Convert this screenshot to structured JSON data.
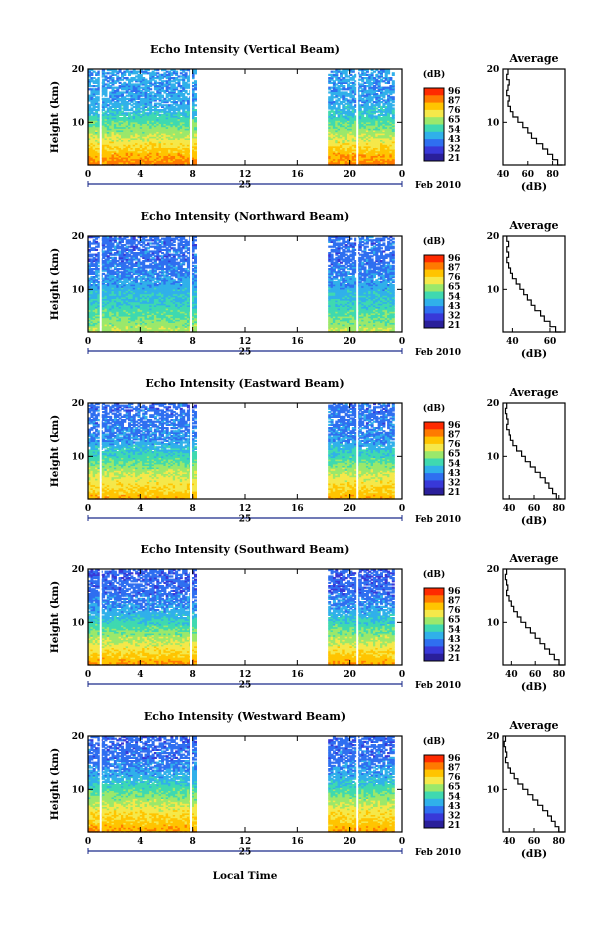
{
  "chart_data": {
    "type": "heatmap",
    "xlabel": "Local Time",
    "date_label": "Feb 2010",
    "day_label": "25",
    "x_ticks": [
      "0",
      "4",
      "8",
      "12",
      "16",
      "20",
      "0"
    ],
    "x_range_hours": [
      0,
      24
    ],
    "data_gaps_hours": [
      [
        8.3,
        18.2
      ]
    ],
    "y_ticks": [
      "20",
      "10"
    ],
    "y_range_km": [
      2,
      20
    ],
    "ylabel": "Height (km)",
    "colorbar": {
      "unit": "(dB)",
      "ticks": [
        "96",
        "87",
        "76",
        "65",
        "54",
        "43",
        "32",
        "21"
      ],
      "range_db": [
        21,
        96
      ],
      "colors": [
        "#ff2a00",
        "#ff7a00",
        "#ffc400",
        "#f5e84a",
        "#9be86b",
        "#3fd9b0",
        "#30b0ea",
        "#2f6ff0",
        "#3838d8",
        "#2a1f9a"
      ]
    },
    "average_title": "Average",
    "average_xlabel": "(dB)",
    "panels": [
      {
        "title": "Echo Intensity (Vertical Beam)",
        "average_x_ticks": [
          "40",
          "60",
          "80"
        ],
        "average_xlim": [
          40,
          90
        ],
        "average_profile": {
          "height_km": [
            20,
            19,
            18,
            17,
            16,
            15,
            14,
            13,
            12,
            11,
            10,
            9,
            8,
            7,
            6,
            5,
            4,
            3,
            2
          ],
          "db": [
            44,
            43,
            45,
            44,
            43,
            45,
            44,
            46,
            48,
            52,
            56,
            60,
            63,
            67,
            72,
            76,
            80,
            84,
            88
          ]
        }
      },
      {
        "title": "Echo Intensity (Northward Beam)",
        "average_x_ticks": [
          "40",
          "60"
        ],
        "average_xlim": [
          35,
          68
        ],
        "average_profile": {
          "height_km": [
            20,
            19,
            18,
            17,
            16,
            15,
            14,
            13,
            12,
            11,
            10,
            9,
            8,
            7,
            6,
            5,
            4,
            3,
            2
          ],
          "db": [
            37,
            38,
            37,
            38,
            37,
            38,
            39,
            40,
            42,
            44,
            46,
            48,
            50,
            52,
            55,
            57,
            60,
            63,
            66
          ]
        }
      },
      {
        "title": "Echo Intensity (Eastward Beam)",
        "average_x_ticks": [
          "40",
          "60",
          "80"
        ],
        "average_xlim": [
          35,
          85
        ],
        "average_profile": {
          "height_km": [
            20,
            19,
            18,
            17,
            16,
            15,
            14,
            13,
            12,
            11,
            10,
            9,
            8,
            7,
            6,
            5,
            4,
            3,
            2
          ],
          "db": [
            38,
            37,
            38,
            39,
            38,
            40,
            41,
            43,
            46,
            50,
            53,
            57,
            61,
            65,
            69,
            72,
            75,
            78,
            82
          ]
        }
      },
      {
        "title": "Echo Intensity (Southward Beam)",
        "average_x_ticks": [
          "40",
          "60",
          "80"
        ],
        "average_xlim": [
          33,
          85
        ],
        "average_profile": {
          "height_km": [
            20,
            19,
            18,
            17,
            16,
            15,
            14,
            13,
            12,
            11,
            10,
            9,
            8,
            7,
            6,
            5,
            4,
            3,
            2
          ],
          "db": [
            36,
            35,
            36,
            37,
            36,
            38,
            40,
            42,
            45,
            48,
            52,
            56,
            60,
            64,
            68,
            72,
            76,
            80,
            84
          ]
        }
      },
      {
        "title": "Echo Intensity (Westward Beam)",
        "average_x_ticks": [
          "40",
          "60",
          "80"
        ],
        "average_xlim": [
          35,
          85
        ],
        "average_profile": {
          "height_km": [
            20,
            19,
            18,
            17,
            16,
            15,
            14,
            13,
            12,
            11,
            10,
            9,
            8,
            7,
            6,
            5,
            4,
            3,
            2
          ],
          "db": [
            37,
            36,
            37,
            38,
            37,
            39,
            41,
            44,
            47,
            51,
            55,
            59,
            63,
            67,
            71,
            74,
            77,
            80,
            84
          ]
        }
      }
    ]
  }
}
